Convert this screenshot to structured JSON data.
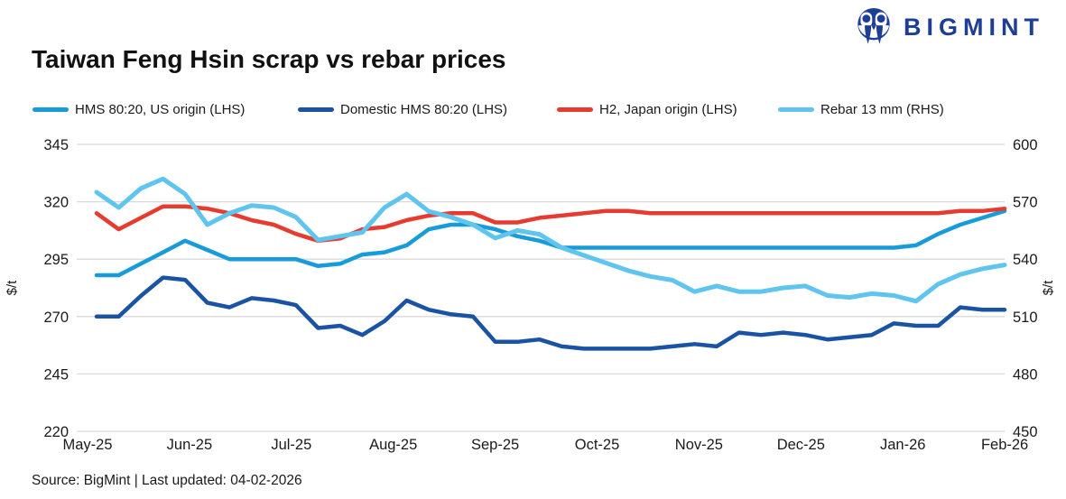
{
  "brand": {
    "name": "BIGMINT",
    "color": "#1D3D96"
  },
  "title": "Taiwan Feng Hsin scrap vs rebar prices",
  "source_note": "Source: BigMint |  Last updated: 04-02-2026",
  "chart_data": {
    "type": "line",
    "title": "Taiwan Feng Hsin scrap vs rebar prices",
    "grid": "horizontal",
    "grid_color": "#D9D9D9",
    "legend_position": "top",
    "x_tick_labels": [
      "May-25",
      "Jun-25",
      "Jul-25",
      "Aug-25",
      "Sep-25",
      "Oct-25",
      "Nov-25",
      "Dec-25",
      "Jan-26",
      "Feb-26"
    ],
    "axis_left": {
      "label": "$/t",
      "min": 220,
      "max": 345,
      "ticks": [
        345,
        320,
        295,
        270,
        245,
        220
      ]
    },
    "axis_right": {
      "label": "$/t",
      "min": 450,
      "max": 600,
      "ticks": [
        600,
        570,
        540,
        510,
        480,
        450
      ]
    },
    "series": [
      {
        "name": "HMS 80:20, US origin (LHS)",
        "axis": "left",
        "color": "#189CD9",
        "values": [
          288,
          288,
          293,
          298,
          303,
          299,
          295,
          295,
          295,
          295,
          292,
          293,
          297,
          298,
          301,
          308,
          310,
          310,
          308,
          305,
          303,
          300,
          300,
          300,
          300,
          300,
          300,
          300,
          300,
          300,
          300,
          300,
          300,
          300,
          300,
          300,
          300,
          301,
          306,
          310,
          313,
          316
        ]
      },
      {
        "name": "Domestic HMS 80:20 (LHS)",
        "axis": "left",
        "color": "#1A52A4",
        "values": [
          270,
          270,
          279,
          287,
          286,
          276,
          274,
          278,
          277,
          275,
          265,
          266,
          262,
          268,
          277,
          273,
          271,
          270,
          259,
          259,
          260,
          257,
          256,
          256,
          256,
          256,
          257,
          258,
          257,
          263,
          262,
          263,
          262,
          260,
          261,
          262,
          267,
          266,
          266,
          274,
          273,
          273
        ]
      },
      {
        "name": "H2, Japan origin (LHS)",
        "axis": "left",
        "color": "#E83B30",
        "values": [
          315,
          308,
          313,
          318,
          318,
          317,
          315,
          312,
          310,
          306,
          303,
          304,
          308,
          309,
          312,
          314,
          315,
          315,
          311,
          311,
          313,
          314,
          315,
          316,
          316,
          315,
          315,
          315,
          315,
          315,
          315,
          315,
          315,
          315,
          315,
          315,
          315,
          315,
          315,
          316,
          316,
          317
        ]
      },
      {
        "name": "Rebar 13 mm (RHS)",
        "axis": "right",
        "color": "#5FC5EE",
        "values": [
          575,
          567,
          577,
          582,
          574,
          558,
          564,
          568,
          567,
          562,
          550,
          552,
          554,
          567,
          574,
          565,
          562,
          558,
          551,
          555,
          553,
          546,
          542,
          538,
          534,
          531,
          529,
          523,
          526,
          523,
          523,
          525,
          526,
          521,
          520,
          522,
          521,
          518,
          527,
          532,
          535,
          537
        ]
      }
    ]
  }
}
